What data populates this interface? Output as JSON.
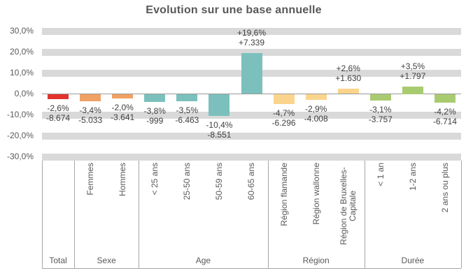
{
  "title": "Evolution sur une base annuelle",
  "chart_data": {
    "type": "bar",
    "title": "Evolution sur une base annuelle",
    "value_unit": "%",
    "grid": "horizontal-thick-bands",
    "legend": "none",
    "y_axis": {
      "min": -30,
      "max": 30,
      "ticks": [
        {
          "label": "30,0%",
          "value": 30
        },
        {
          "label": "20,0%",
          "value": 20
        },
        {
          "label": "10,0%",
          "value": 10
        },
        {
          "label": "0,0%",
          "value": 0
        },
        {
          "label": "-10,0%",
          "value": -10
        },
        {
          "label": "-20,0%",
          "value": -20
        },
        {
          "label": "-30,0%",
          "value": -30
        }
      ]
    },
    "groups": [
      {
        "name": "Total",
        "color": "#e1332e",
        "bars": [
          {
            "category": "",
            "pct": -2.6,
            "pct_label": "-2,6%",
            "abs_label": "-8.674"
          }
        ]
      },
      {
        "name": "Sexe",
        "color": "#f0a164",
        "bars": [
          {
            "category": "Femmes",
            "pct": -3.4,
            "pct_label": "-3,4%",
            "abs_label": "-5.033"
          },
          {
            "category": "Hommes",
            "pct": -2.0,
            "pct_label": "-2,0%",
            "abs_label": "-3.641"
          }
        ]
      },
      {
        "name": "Age",
        "color": "#7bc0bd",
        "bars": [
          {
            "category": "< 25 ans",
            "pct": -3.8,
            "pct_label": "-3,8%",
            "abs_label": "-999"
          },
          {
            "category": "25-50 ans",
            "pct": -3.5,
            "pct_label": "-3,5%",
            "abs_label": "-6.463"
          },
          {
            "category": "50-59 ans",
            "pct": -10.4,
            "pct_label": "-10,4%",
            "abs_label": "-8.551"
          },
          {
            "category": "60-65 ans",
            "pct": 19.6,
            "pct_label": "+19,6%",
            "abs_label": "+7.339"
          }
        ]
      },
      {
        "name": "Région",
        "color": "#fbd48c",
        "bars": [
          {
            "category": "Région flamande",
            "pct": -4.7,
            "pct_label": "-4,7%",
            "abs_label": "-6.296"
          },
          {
            "category": "Région wallonne",
            "pct": -2.9,
            "pct_label": "-2,9%",
            "abs_label": "-4.008"
          },
          {
            "category": "Région de Bruxelles-Capitale",
            "pct": 2.6,
            "pct_label": "+2,6%",
            "abs_label": "+1.630"
          }
        ]
      },
      {
        "name": "Durée",
        "color": "#a9cb70",
        "bars": [
          {
            "category": "< 1 an",
            "pct": -3.1,
            "pct_label": "-3,1%",
            "abs_label": "-3.757"
          },
          {
            "category": "1-2 ans",
            "pct": 3.5,
            "pct_label": "+3,5%",
            "abs_label": "+1.797"
          },
          {
            "category": "2 ans ou plus",
            "pct": -4.2,
            "pct_label": "-4,2%",
            "abs_label": "-6.714"
          }
        ]
      }
    ],
    "colors": {
      "grid_band": "#d9d9d9",
      "axis_line": "#9a9a9a",
      "category_divider": "#a6a6a6",
      "title_text": "#595959",
      "axis_text": "#595959",
      "data_label_text": "#404040"
    }
  }
}
